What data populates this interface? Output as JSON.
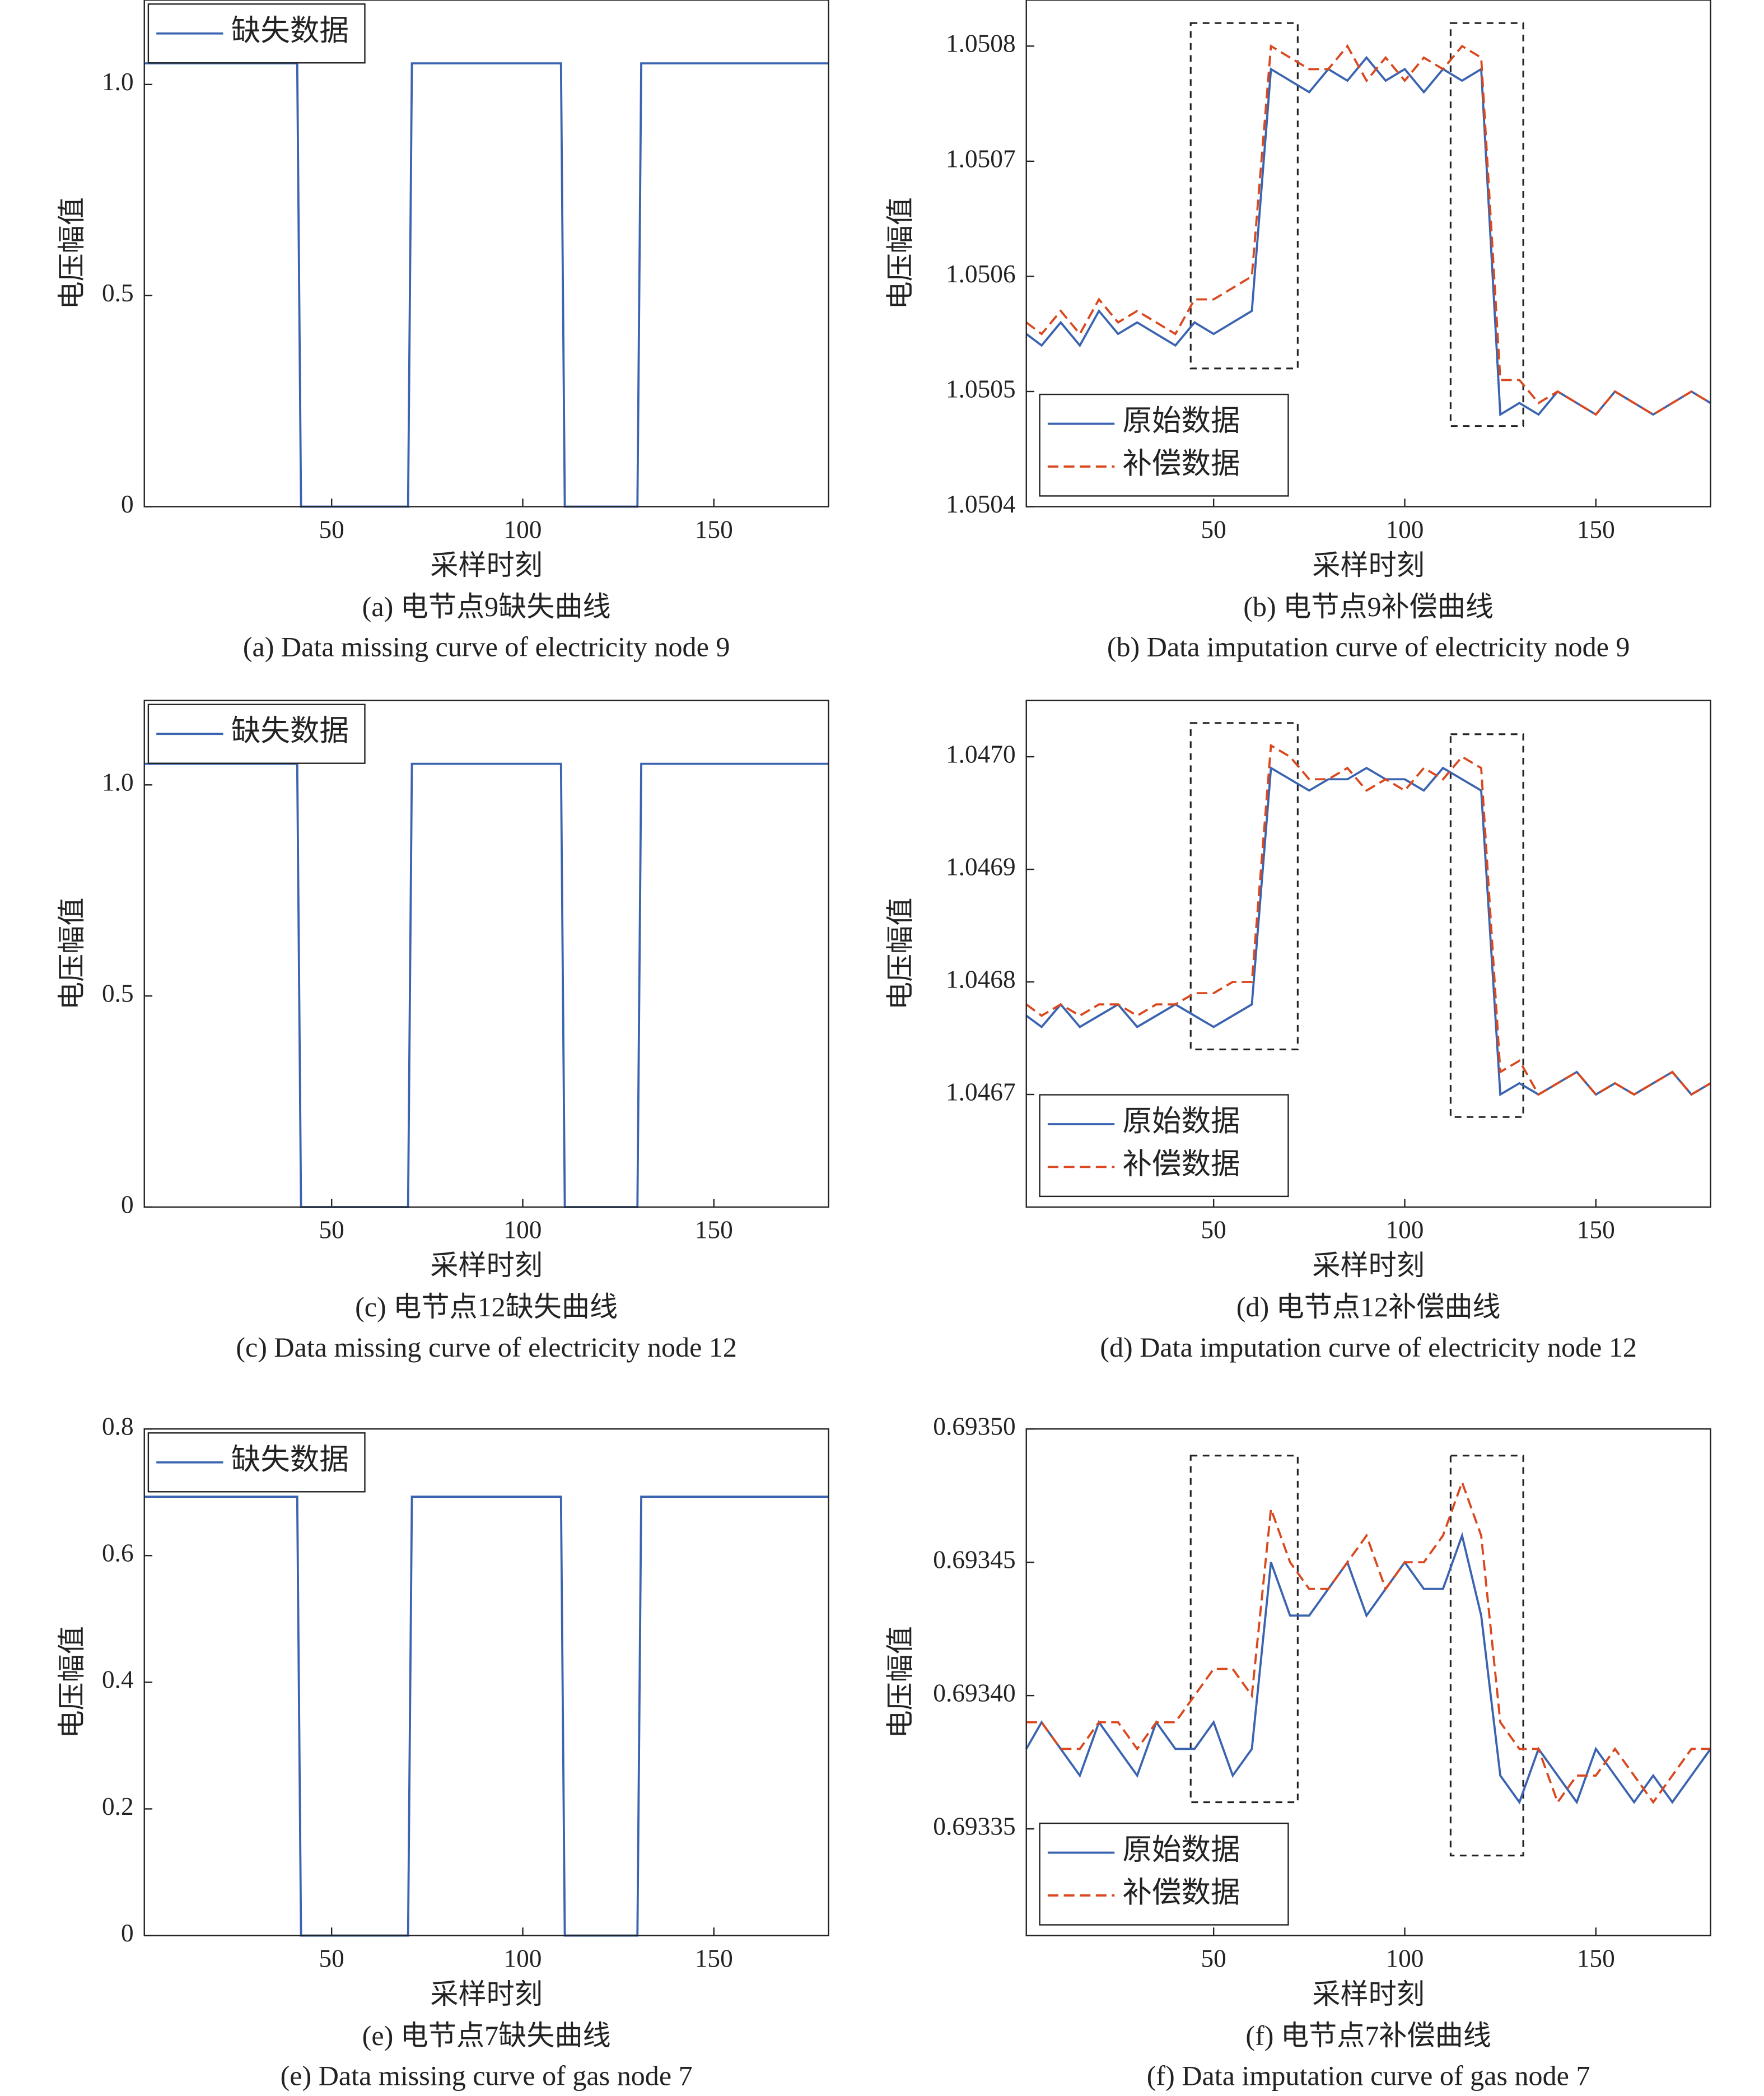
{
  "chart_data": [
    {
      "type": "line",
      "title": "(a) 电节点9缺失曲线",
      "subtitle": "(a) Data missing curve of electricity node 9",
      "xlabel": "采样时刻",
      "ylabel": "电压幅值",
      "x": [
        1,
        41,
        42,
        70,
        71,
        110,
        111,
        130,
        131,
        180
      ],
      "series": [
        {
          "name": "缺失数据",
          "color": "#3a63b0",
          "values": [
            1.05,
            1.05,
            0,
            0,
            1.05,
            1.05,
            0,
            0,
            1.05,
            1.05
          ]
        }
      ],
      "xlim": [
        1,
        180
      ],
      "ylim": [
        0,
        1.2
      ],
      "xticks": [
        50,
        100,
        150
      ],
      "yticks": [
        0,
        0.5,
        {
          "value": 1,
          "label": "1.0"
        }
      ],
      "legend": "upper left"
    },
    {
      "type": "line",
      "title": "(b) 电节点9补偿曲线",
      "subtitle": "(b) Data imputation curve of electricity node 9",
      "xlabel": "采样时刻",
      "ylabel": "电压幅值",
      "x": [
        1,
        5,
        10,
        15,
        20,
        25,
        30,
        35,
        40,
        45,
        50,
        55,
        60,
        65,
        70,
        75,
        80,
        85,
        90,
        95,
        100,
        105,
        110,
        115,
        120,
        125,
        130,
        135,
        140,
        145,
        150,
        155,
        160,
        165,
        170,
        175,
        180
      ],
      "series": [
        {
          "name": "原始数据",
          "color": "#3a63b0",
          "dash": false,
          "values": [
            1.05055,
            1.05054,
            1.05056,
            1.05054,
            1.05057,
            1.05055,
            1.05056,
            1.05055,
            1.05054,
            1.05056,
            1.05055,
            1.05056,
            1.05057,
            1.05078,
            1.05077,
            1.05076,
            1.05078,
            1.05077,
            1.05079,
            1.05077,
            1.05078,
            1.05076,
            1.05078,
            1.05077,
            1.05078,
            1.05048,
            1.05049,
            1.05048,
            1.0505,
            1.05049,
            1.05048,
            1.0505,
            1.05049,
            1.05048,
            1.05049,
            1.0505,
            1.05049
          ]
        },
        {
          "name": "补偿数据",
          "color": "#d9481e",
          "dash": true,
          "values": [
            1.05056,
            1.05055,
            1.05057,
            1.05055,
            1.05058,
            1.05056,
            1.05057,
            1.05056,
            1.05055,
            1.05058,
            1.05058,
            1.05059,
            1.0506,
            1.0508,
            1.05079,
            1.05078,
            1.05078,
            1.0508,
            1.05077,
            1.05079,
            1.05077,
            1.05079,
            1.05078,
            1.0508,
            1.05079,
            1.05051,
            1.05051,
            1.05049,
            1.0505,
            1.05049,
            1.05048,
            1.0505,
            1.05049,
            1.05048,
            1.05049,
            1.0505,
            1.05049
          ]
        }
      ],
      "regions": [
        {
          "x": [
            44,
            72
          ],
          "y": [
            1.05052,
            1.05082
          ]
        },
        {
          "x": [
            112,
            131
          ],
          "y": [
            1.05047,
            1.05082
          ]
        }
      ],
      "xlim": [
        1,
        180
      ],
      "ylim": [
        1.0504,
        1.05084
      ],
      "xticks": [
        50,
        100,
        150
      ],
      "yticks": [
        1.0504,
        1.0505,
        1.0506,
        1.0507,
        1.0508
      ],
      "legend": "lower left"
    },
    {
      "type": "line",
      "title": "(c) 电节点12缺失曲线",
      "subtitle": "(c) Data missing curve of electricity node 12",
      "xlabel": "采样时刻",
      "ylabel": "电压幅值",
      "x": [
        1,
        41,
        42,
        70,
        71,
        110,
        111,
        130,
        131,
        180
      ],
      "series": [
        {
          "name": "缺失数据",
          "color": "#3a63b0",
          "values": [
            1.05,
            1.05,
            0,
            0,
            1.05,
            1.05,
            0,
            0,
            1.05,
            1.05
          ]
        }
      ],
      "xlim": [
        1,
        180
      ],
      "ylim": [
        0,
        1.2
      ],
      "xticks": [
        50,
        100,
        150
      ],
      "yticks": [
        0,
        0.5,
        {
          "value": 1,
          "label": "1.0"
        }
      ],
      "legend": "upper left"
    },
    {
      "type": "line",
      "title": "(d) 电节点12补偿曲线",
      "subtitle": "(d) Data imputation curve of electricity node 12",
      "xlabel": "采样时刻",
      "ylabel": "电压幅值",
      "x": [
        1,
        5,
        10,
        15,
        20,
        25,
        30,
        35,
        40,
        45,
        50,
        55,
        60,
        65,
        70,
        75,
        80,
        85,
        90,
        95,
        100,
        105,
        110,
        115,
        120,
        125,
        130,
        135,
        140,
        145,
        150,
        155,
        160,
        165,
        170,
        175,
        180
      ],
      "series": [
        {
          "name": "原始数据",
          "color": "#3a63b0",
          "dash": false,
          "values": [
            1.04677,
            1.04676,
            1.04678,
            1.04676,
            1.04677,
            1.04678,
            1.04676,
            1.04677,
            1.04678,
            1.04677,
            1.04676,
            1.04677,
            1.04678,
            1.04699,
            1.04698,
            1.04697,
            1.04698,
            1.04698,
            1.04699,
            1.04698,
            1.04698,
            1.04697,
            1.04699,
            1.04698,
            1.04697,
            1.0467,
            1.04671,
            1.0467,
            1.04671,
            1.04672,
            1.0467,
            1.04671,
            1.0467,
            1.04671,
            1.04672,
            1.0467,
            1.04671
          ]
        },
        {
          "name": "补偿数据",
          "color": "#d9481e",
          "dash": true,
          "values": [
            1.04678,
            1.04677,
            1.04678,
            1.04677,
            1.04678,
            1.04678,
            1.04677,
            1.04678,
            1.04678,
            1.04679,
            1.04679,
            1.0468,
            1.0468,
            1.04701,
            1.047,
            1.04698,
            1.04698,
            1.04699,
            1.04697,
            1.04698,
            1.04697,
            1.04699,
            1.04698,
            1.047,
            1.04699,
            1.04672,
            1.04673,
            1.0467,
            1.04671,
            1.04672,
            1.0467,
            1.04671,
            1.0467,
            1.04671,
            1.04672,
            1.0467,
            1.04671
          ]
        }
      ],
      "regions": [
        {
          "x": [
            44,
            72
          ],
          "y": [
            1.04674,
            1.04703
          ]
        },
        {
          "x": [
            112,
            131
          ],
          "y": [
            1.04668,
            1.04702
          ]
        }
      ],
      "xlim": [
        1,
        180
      ],
      "ylim": [
        1.0466,
        1.04705
      ],
      "xticks": [
        50,
        100,
        150
      ],
      "yticks": [
        1.0467,
        1.0468,
        1.0469,
        {
          "value": 1.047,
          "label": "1.0470"
        }
      ],
      "legend": "lower left"
    },
    {
      "type": "line",
      "title": "(e) 电节点7缺失曲线",
      "subtitle": "(e) Data missing curve of gas node 7",
      "xlabel": "采样时刻",
      "ylabel": "电压幅值",
      "x": [
        1,
        41,
        42,
        70,
        71,
        110,
        111,
        130,
        131,
        180
      ],
      "series": [
        {
          "name": "缺失数据",
          "color": "#3a63b0",
          "values": [
            0.693,
            0.693,
            0,
            0,
            0.693,
            0.693,
            0,
            0,
            0.693,
            0.693
          ]
        }
      ],
      "xlim": [
        1,
        180
      ],
      "ylim": [
        0,
        0.8
      ],
      "xticks": [
        50,
        100,
        150
      ],
      "yticks": [
        0,
        0.2,
        0.4,
        0.6,
        0.8
      ],
      "legend": "upper left"
    },
    {
      "type": "line",
      "title": "(f) 电节点7补偿曲线",
      "subtitle": "(f) Data imputation curve of gas node 7",
      "xlabel": "采样时刻",
      "ylabel": "电压幅值",
      "x": [
        1,
        5,
        10,
        15,
        20,
        25,
        30,
        35,
        40,
        45,
        50,
        55,
        60,
        65,
        70,
        75,
        80,
        85,
        90,
        95,
        100,
        105,
        110,
        115,
        120,
        125,
        130,
        135,
        140,
        145,
        150,
        155,
        160,
        165,
        170,
        175,
        180
      ],
      "series": [
        {
          "name": "原始数据",
          "color": "#3a63b0",
          "dash": false,
          "values": [
            0.69338,
            0.69339,
            0.69338,
            0.69337,
            0.69339,
            0.69338,
            0.69337,
            0.69339,
            0.69338,
            0.69338,
            0.69339,
            0.69337,
            0.69338,
            0.69345,
            0.69343,
            0.69343,
            0.69344,
            0.69345,
            0.69343,
            0.69344,
            0.69345,
            0.69344,
            0.69344,
            0.69346,
            0.69343,
            0.69337,
            0.69336,
            0.69338,
            0.69337,
            0.69336,
            0.69338,
            0.69337,
            0.69336,
            0.69337,
            0.69336,
            0.69337,
            0.69338
          ]
        },
        {
          "name": "补偿数据",
          "color": "#d9481e",
          "dash": true,
          "values": [
            0.69339,
            0.69339,
            0.69338,
            0.69338,
            0.69339,
            0.69339,
            0.69338,
            0.69339,
            0.69339,
            0.6934,
            0.69341,
            0.69341,
            0.6934,
            0.69347,
            0.69345,
            0.69344,
            0.69344,
            0.69345,
            0.69346,
            0.69344,
            0.69345,
            0.69345,
            0.69346,
            0.69348,
            0.69346,
            0.69339,
            0.69338,
            0.69338,
            0.69336,
            0.69337,
            0.69337,
            0.69338,
            0.69337,
            0.69336,
            0.69337,
            0.69338,
            0.69338
          ]
        }
      ],
      "regions": [
        {
          "x": [
            44,
            72
          ],
          "y": [
            0.69336,
            0.69349
          ]
        },
        {
          "x": [
            112,
            131
          ],
          "y": [
            0.69334,
            0.69349
          ]
        }
      ],
      "xlim": [
        1,
        180
      ],
      "ylim": [
        0.69331,
        0.6935
      ],
      "xticks": [
        50,
        100,
        150
      ],
      "yticks": [
        0.69335,
        {
          "value": 0.6934,
          "label": "0.69340"
        },
        0.69345,
        {
          "value": 0.6935,
          "label": "0.69350"
        }
      ],
      "legend": "lower left"
    }
  ]
}
